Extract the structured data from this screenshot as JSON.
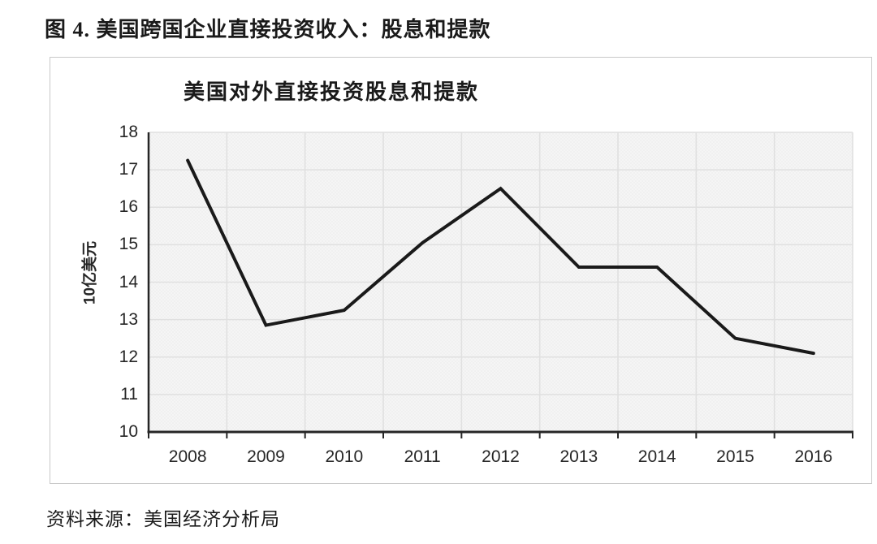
{
  "page": {
    "figure_caption": "图 4. 美国跨国企业直接投资收入：股息和提款",
    "source_note": "资料来源：美国经济分析局"
  },
  "chart_data": {
    "type": "line",
    "title": "美国对外直接投资股息和提款",
    "ylabel": "10亿美元",
    "xlabel": "",
    "categories": [
      "2008",
      "2009",
      "2010",
      "2011",
      "2012",
      "2013",
      "2014",
      "2015",
      "2016"
    ],
    "series": [
      {
        "name": "美国对外直接投资股息和提款",
        "values": [
          17.25,
          12.85,
          13.25,
          15.05,
          16.5,
          14.4,
          14.4,
          12.5,
          12.1
        ]
      }
    ],
    "ylim": [
      10,
      18
    ],
    "ytick_step": 1,
    "grid": true,
    "legend": "none",
    "colors": {
      "line": "#1a1a1a",
      "grid": "#e0e0e0",
      "axis": "#262626",
      "plot_background": "#f6f6f6",
      "tick_text": "#262626"
    }
  }
}
